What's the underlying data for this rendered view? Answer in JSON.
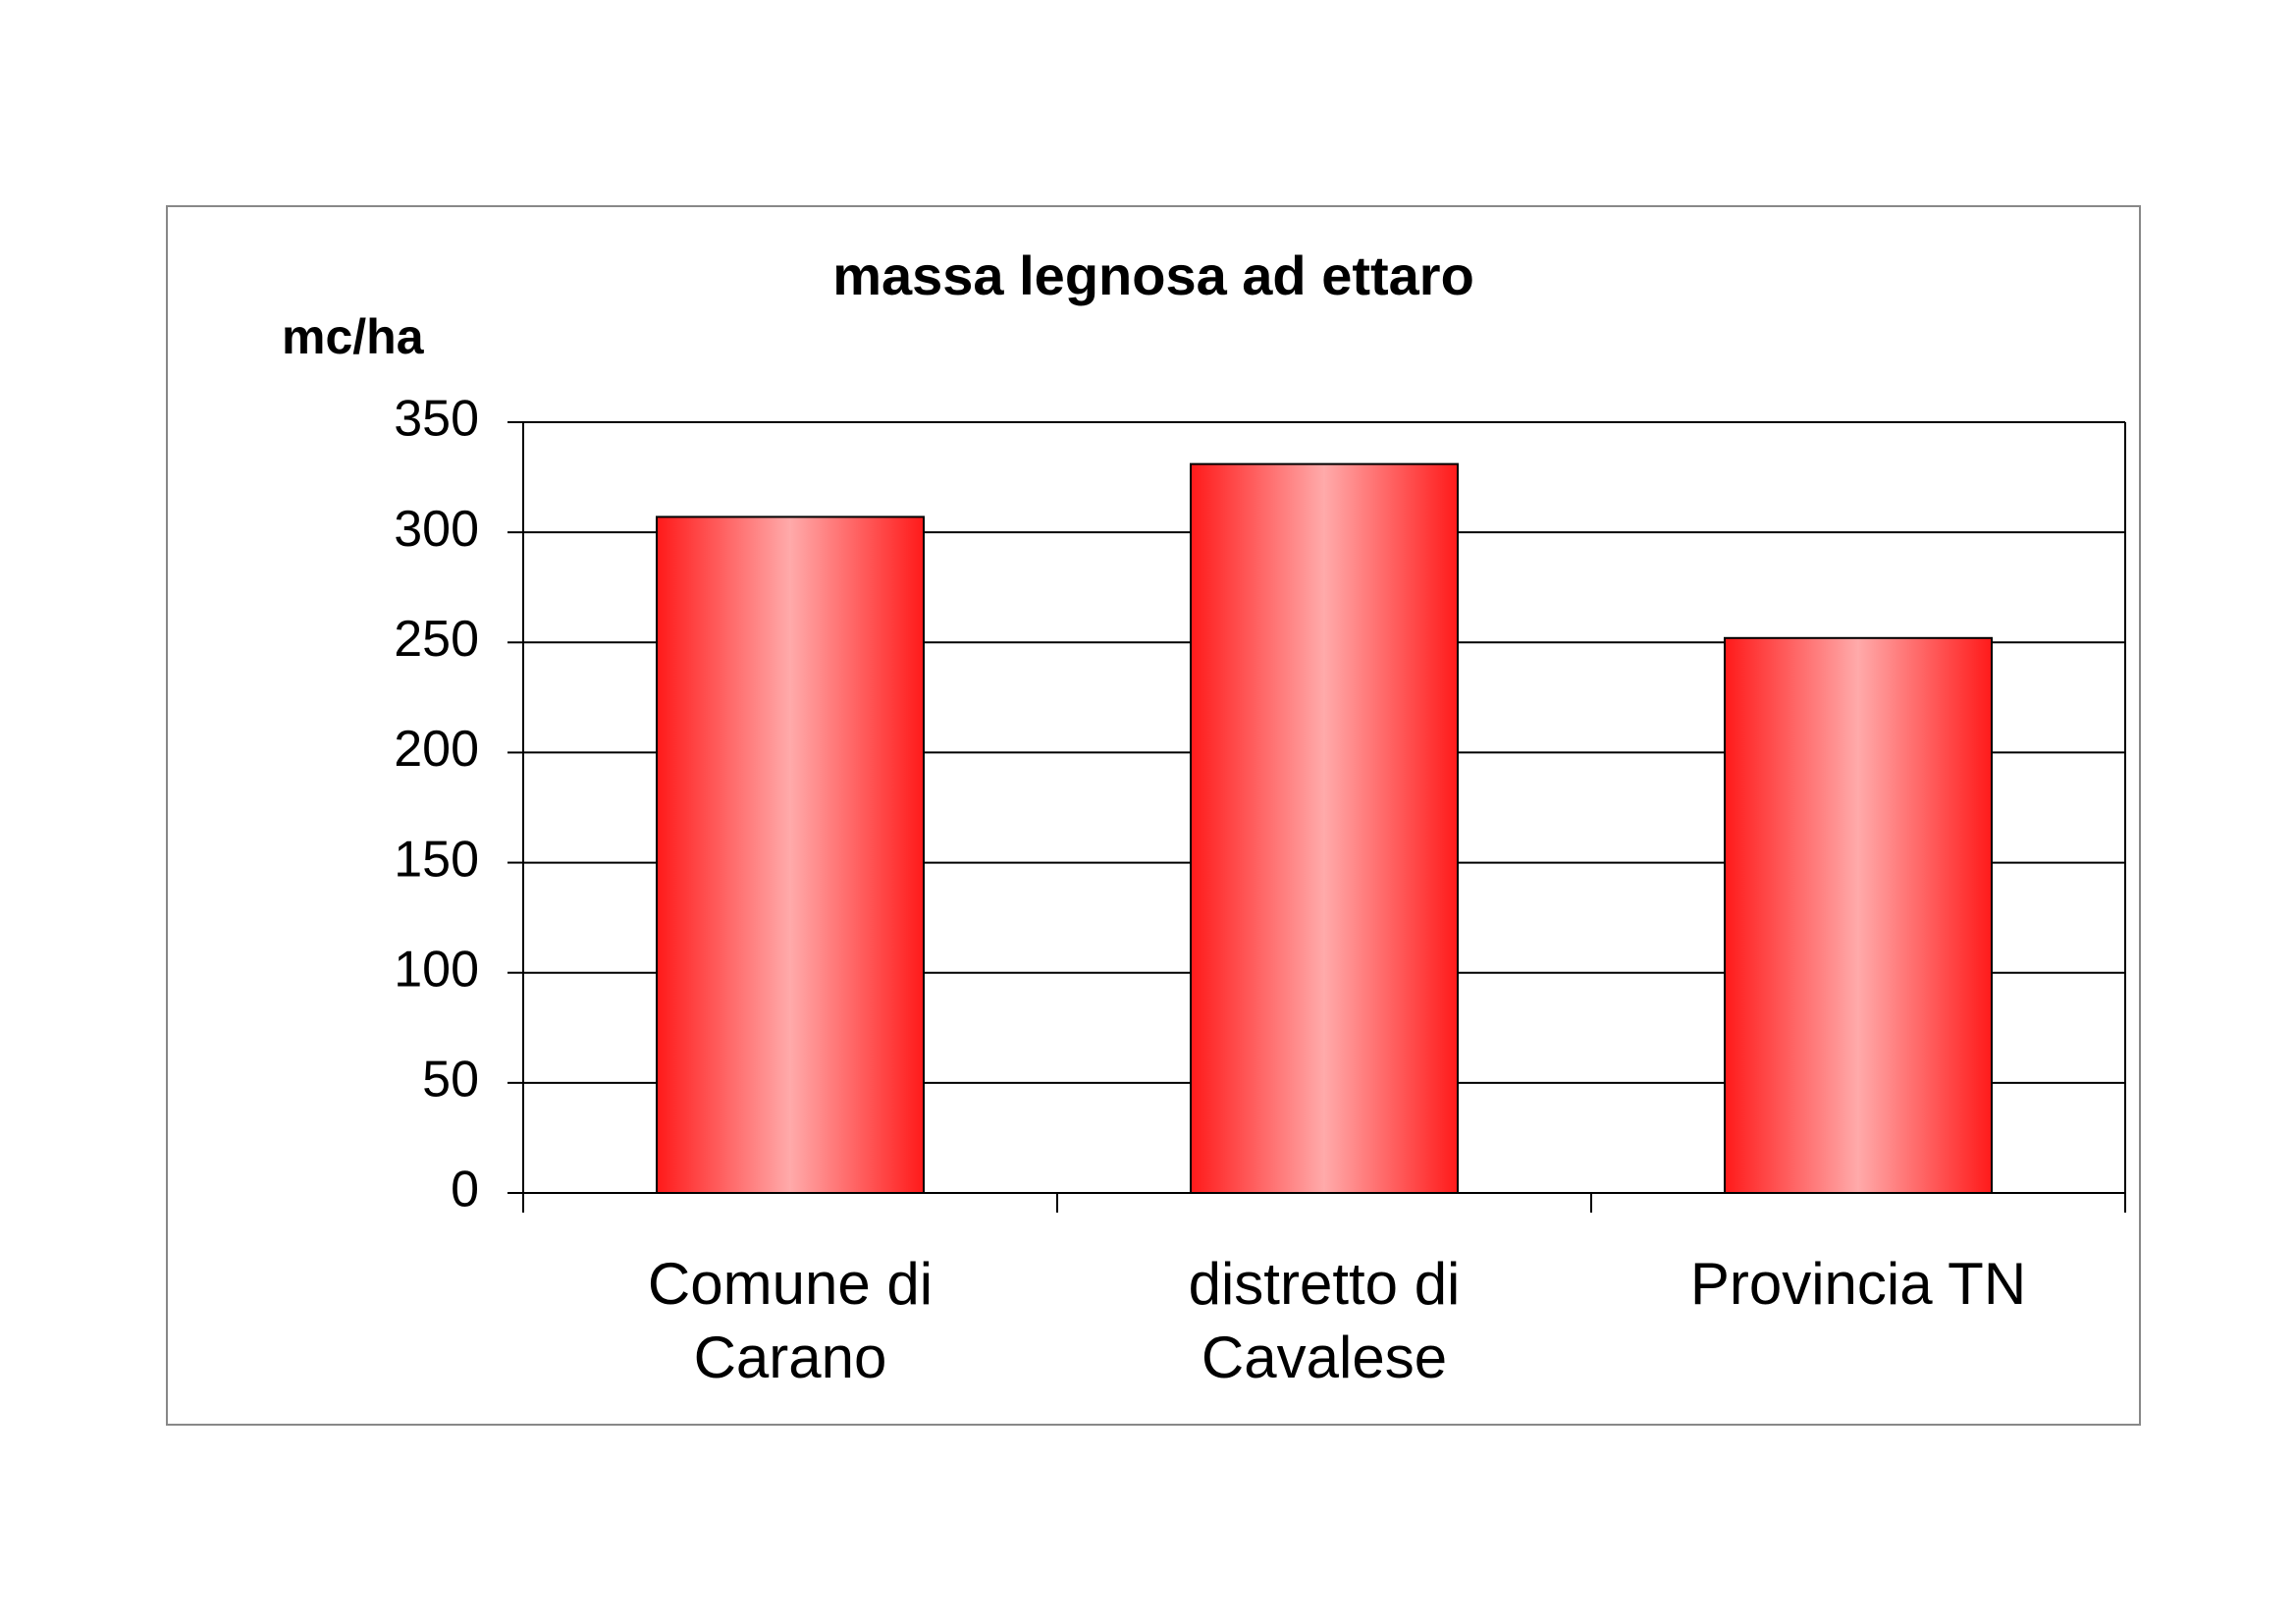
{
  "chart_data": {
    "type": "bar",
    "title": "massa legnosa ad ettaro",
    "y_label": "mc/ha",
    "categories": [
      "Comune di\nCarano",
      "distretto di\nCavalese",
      "Provincia TN"
    ],
    "values": [
      307,
      331,
      252
    ],
    "color": "#ff2020",
    "ylim": [
      0,
      350
    ],
    "yticks": [
      0,
      50,
      100,
      150,
      200,
      250,
      300,
      350
    ],
    "grid": true
  }
}
